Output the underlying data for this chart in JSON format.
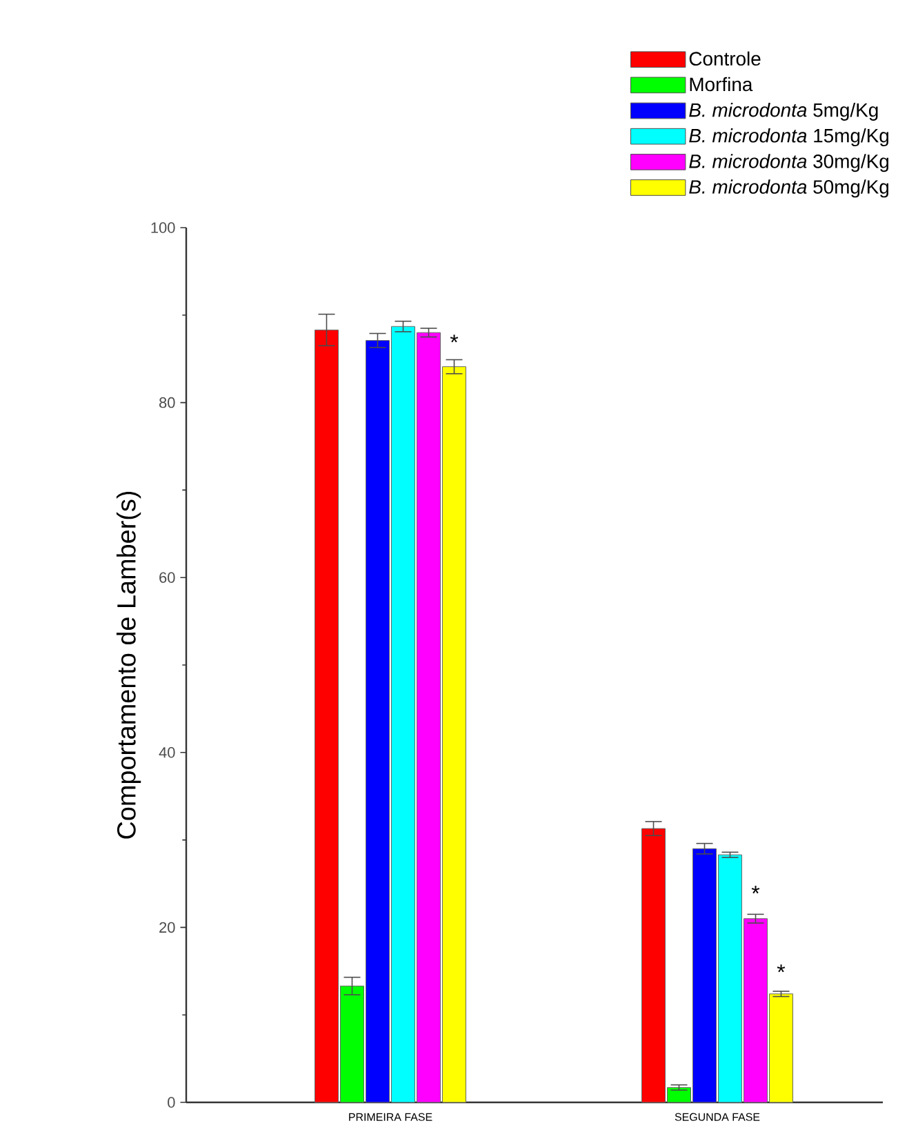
{
  "chart_data": {
    "type": "bar",
    "ylabel": "Comportamento de Lamber(s)",
    "categories": [
      "PRIMEIRA FASE",
      "SEGUNDA FASE"
    ],
    "series": [
      {
        "name": "Controle",
        "color": "#ff0000",
        "values": [
          88.3,
          31.3
        ],
        "errors": [
          1.8,
          0.8
        ]
      },
      {
        "name": "Morfina",
        "color": "#00ff00",
        "values": [
          13.3,
          1.7
        ],
        "errors": [
          1.0,
          0.3
        ]
      },
      {
        "name": "*B. microdonta* 5mg/Kg",
        "color": "#0000ff",
        "values": [
          87.1,
          29.0
        ],
        "errors": [
          0.8,
          0.6
        ]
      },
      {
        "name": "*B. microdonta* 15mg/Kg",
        "color": "#00ffff",
        "values": [
          88.7,
          28.3
        ],
        "errors": [
          0.6,
          0.3
        ]
      },
      {
        "name": "*B. microdonta* 30mg/Kg",
        "color": "#ff00ff",
        "values": [
          88.0,
          21.0
        ],
        "errors": [
          0.5,
          0.5
        ]
      },
      {
        "name": "*B. microdonta* 50mg/Kg",
        "color": "#ffff00",
        "values": [
          84.1,
          12.4
        ],
        "errors": [
          0.8,
          0.3
        ]
      }
    ],
    "annotations": [
      {
        "text": "*",
        "x": "PRIMEIRA FASE",
        "y": 86
      },
      {
        "text": "*",
        "x": "SEGUNDA FASE",
        "y": 23
      },
      {
        "text": "*",
        "x": "SEGUNDA FASE",
        "y": 14
      }
    ],
    "ylim": [
      0,
      100
    ],
    "yticks": [
      0,
      20,
      40,
      60,
      80,
      100
    ],
    "legend": "top right",
    "grid": false
  }
}
